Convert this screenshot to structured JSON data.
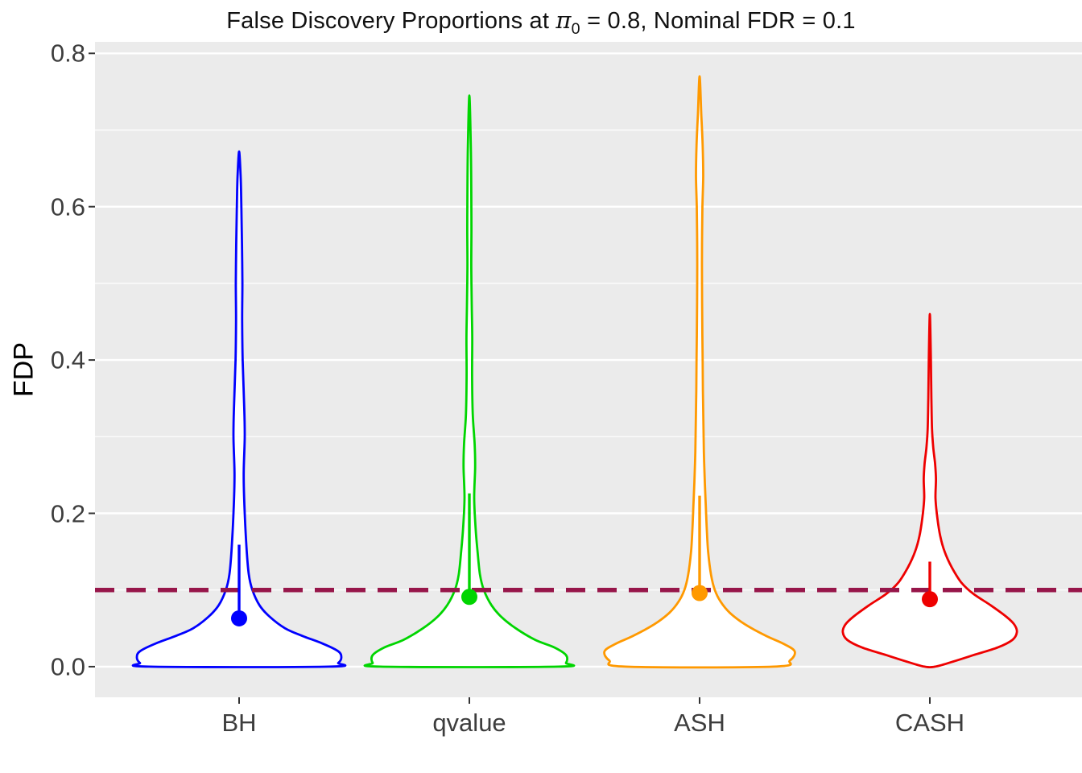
{
  "title": {
    "prefix": "False Discovery Proportions at ",
    "pi": "π",
    "pi_sub": "0",
    "suffix": " = 0.8, Nominal FDR = 0.1"
  },
  "axes": {
    "y_label": "FDP",
    "y_tick_labels": [
      "0.0",
      "0.2",
      "0.4",
      "0.6",
      "0.8"
    ],
    "x_categories": [
      "BH",
      "qvalue",
      "ASH",
      "CASH"
    ]
  },
  "chart_data": {
    "type": "violin",
    "title": "False Discovery Proportions at π₀ = 0.8, Nominal FDR = 0.1",
    "xlabel": "",
    "ylabel": "FDP",
    "ylim": [
      -0.04,
      0.815
    ],
    "y_major_ticks": [
      0.0,
      0.2,
      0.4,
      0.6,
      0.8
    ],
    "y_minor_ticks": [
      0.1,
      0.3,
      0.5,
      0.7
    ],
    "categories": [
      "BH",
      "qvalue",
      "ASH",
      "CASH"
    ],
    "panel_bg": "#EBEBEB",
    "grid_color": "#FFFFFF",
    "grid": true,
    "legend": "none",
    "nominal_fdr_line": {
      "y": 0.1,
      "color": "#97164A",
      "style": "dashed"
    },
    "series": [
      {
        "name": "BH",
        "color": "#0000FF",
        "mean": 0.063,
        "upper": 0.159,
        "max": 0.672,
        "max_half_width": 0.444,
        "profile": [
          [
            0.0,
            0.88
          ],
          [
            0.005,
            0.97
          ],
          [
            0.012,
            1.0
          ],
          [
            0.02,
            0.97
          ],
          [
            0.03,
            0.82
          ],
          [
            0.04,
            0.62
          ],
          [
            0.05,
            0.45
          ],
          [
            0.065,
            0.3
          ],
          [
            0.08,
            0.2
          ],
          [
            0.1,
            0.13
          ],
          [
            0.12,
            0.095
          ],
          [
            0.15,
            0.075
          ],
          [
            0.2,
            0.055
          ],
          [
            0.25,
            0.045
          ],
          [
            0.3,
            0.055
          ],
          [
            0.34,
            0.05
          ],
          [
            0.4,
            0.035
          ],
          [
            0.45,
            0.03
          ],
          [
            0.5,
            0.032
          ],
          [
            0.55,
            0.028
          ],
          [
            0.6,
            0.022
          ],
          [
            0.64,
            0.015
          ],
          [
            0.672,
            0.0
          ]
        ]
      },
      {
        "name": "qvalue",
        "color": "#00D500",
        "mean": 0.091,
        "upper": 0.226,
        "max": 0.745,
        "max_half_width": 0.42,
        "profile": [
          [
            0.0,
            0.92
          ],
          [
            0.005,
            1.0
          ],
          [
            0.015,
            1.0
          ],
          [
            0.025,
            0.88
          ],
          [
            0.035,
            0.68
          ],
          [
            0.05,
            0.48
          ],
          [
            0.065,
            0.33
          ],
          [
            0.08,
            0.23
          ],
          [
            0.1,
            0.15
          ],
          [
            0.12,
            0.11
          ],
          [
            0.15,
            0.085
          ],
          [
            0.18,
            0.065
          ],
          [
            0.22,
            0.05
          ],
          [
            0.26,
            0.06
          ],
          [
            0.29,
            0.055
          ],
          [
            0.33,
            0.035
          ],
          [
            0.38,
            0.028
          ],
          [
            0.43,
            0.03
          ],
          [
            0.47,
            0.025
          ],
          [
            0.52,
            0.02
          ],
          [
            0.57,
            0.022
          ],
          [
            0.62,
            0.02
          ],
          [
            0.68,
            0.015
          ],
          [
            0.745,
            0.0
          ]
        ]
      },
      {
        "name": "ASH",
        "color": "#FF9900",
        "mean": 0.096,
        "upper": 0.223,
        "max": 0.77,
        "max_half_width": 0.413,
        "profile": [
          [
            0.0,
            0.78
          ],
          [
            0.008,
            0.95
          ],
          [
            0.02,
            1.0
          ],
          [
            0.03,
            0.88
          ],
          [
            0.04,
            0.7
          ],
          [
            0.055,
            0.48
          ],
          [
            0.07,
            0.32
          ],
          [
            0.085,
            0.22
          ],
          [
            0.1,
            0.16
          ],
          [
            0.12,
            0.12
          ],
          [
            0.15,
            0.09
          ],
          [
            0.18,
            0.075
          ],
          [
            0.21,
            0.065
          ],
          [
            0.24,
            0.055
          ],
          [
            0.28,
            0.045
          ],
          [
            0.32,
            0.04
          ],
          [
            0.36,
            0.035
          ],
          [
            0.4,
            0.032
          ],
          [
            0.45,
            0.028
          ],
          [
            0.5,
            0.025
          ],
          [
            0.55,
            0.025
          ],
          [
            0.6,
            0.03
          ],
          [
            0.64,
            0.038
          ],
          [
            0.68,
            0.032
          ],
          [
            0.72,
            0.018
          ],
          [
            0.77,
            0.0
          ]
        ]
      },
      {
        "name": "CASH",
        "color": "#EE0000",
        "mean": 0.088,
        "upper": 0.137,
        "max": 0.46,
        "max_half_width": 0.378,
        "profile": [
          [
            0.0,
            0.06
          ],
          [
            0.006,
            0.25
          ],
          [
            0.015,
            0.5
          ],
          [
            0.025,
            0.78
          ],
          [
            0.035,
            0.95
          ],
          [
            0.045,
            1.0
          ],
          [
            0.055,
            0.97
          ],
          [
            0.065,
            0.88
          ],
          [
            0.08,
            0.7
          ],
          [
            0.095,
            0.5
          ],
          [
            0.11,
            0.36
          ],
          [
            0.13,
            0.25
          ],
          [
            0.15,
            0.17
          ],
          [
            0.17,
            0.12
          ],
          [
            0.195,
            0.085
          ],
          [
            0.22,
            0.065
          ],
          [
            0.245,
            0.07
          ],
          [
            0.265,
            0.06
          ],
          [
            0.285,
            0.04
          ],
          [
            0.31,
            0.025
          ],
          [
            0.35,
            0.018
          ],
          [
            0.4,
            0.012
          ],
          [
            0.46,
            0.0
          ]
        ]
      }
    ]
  }
}
